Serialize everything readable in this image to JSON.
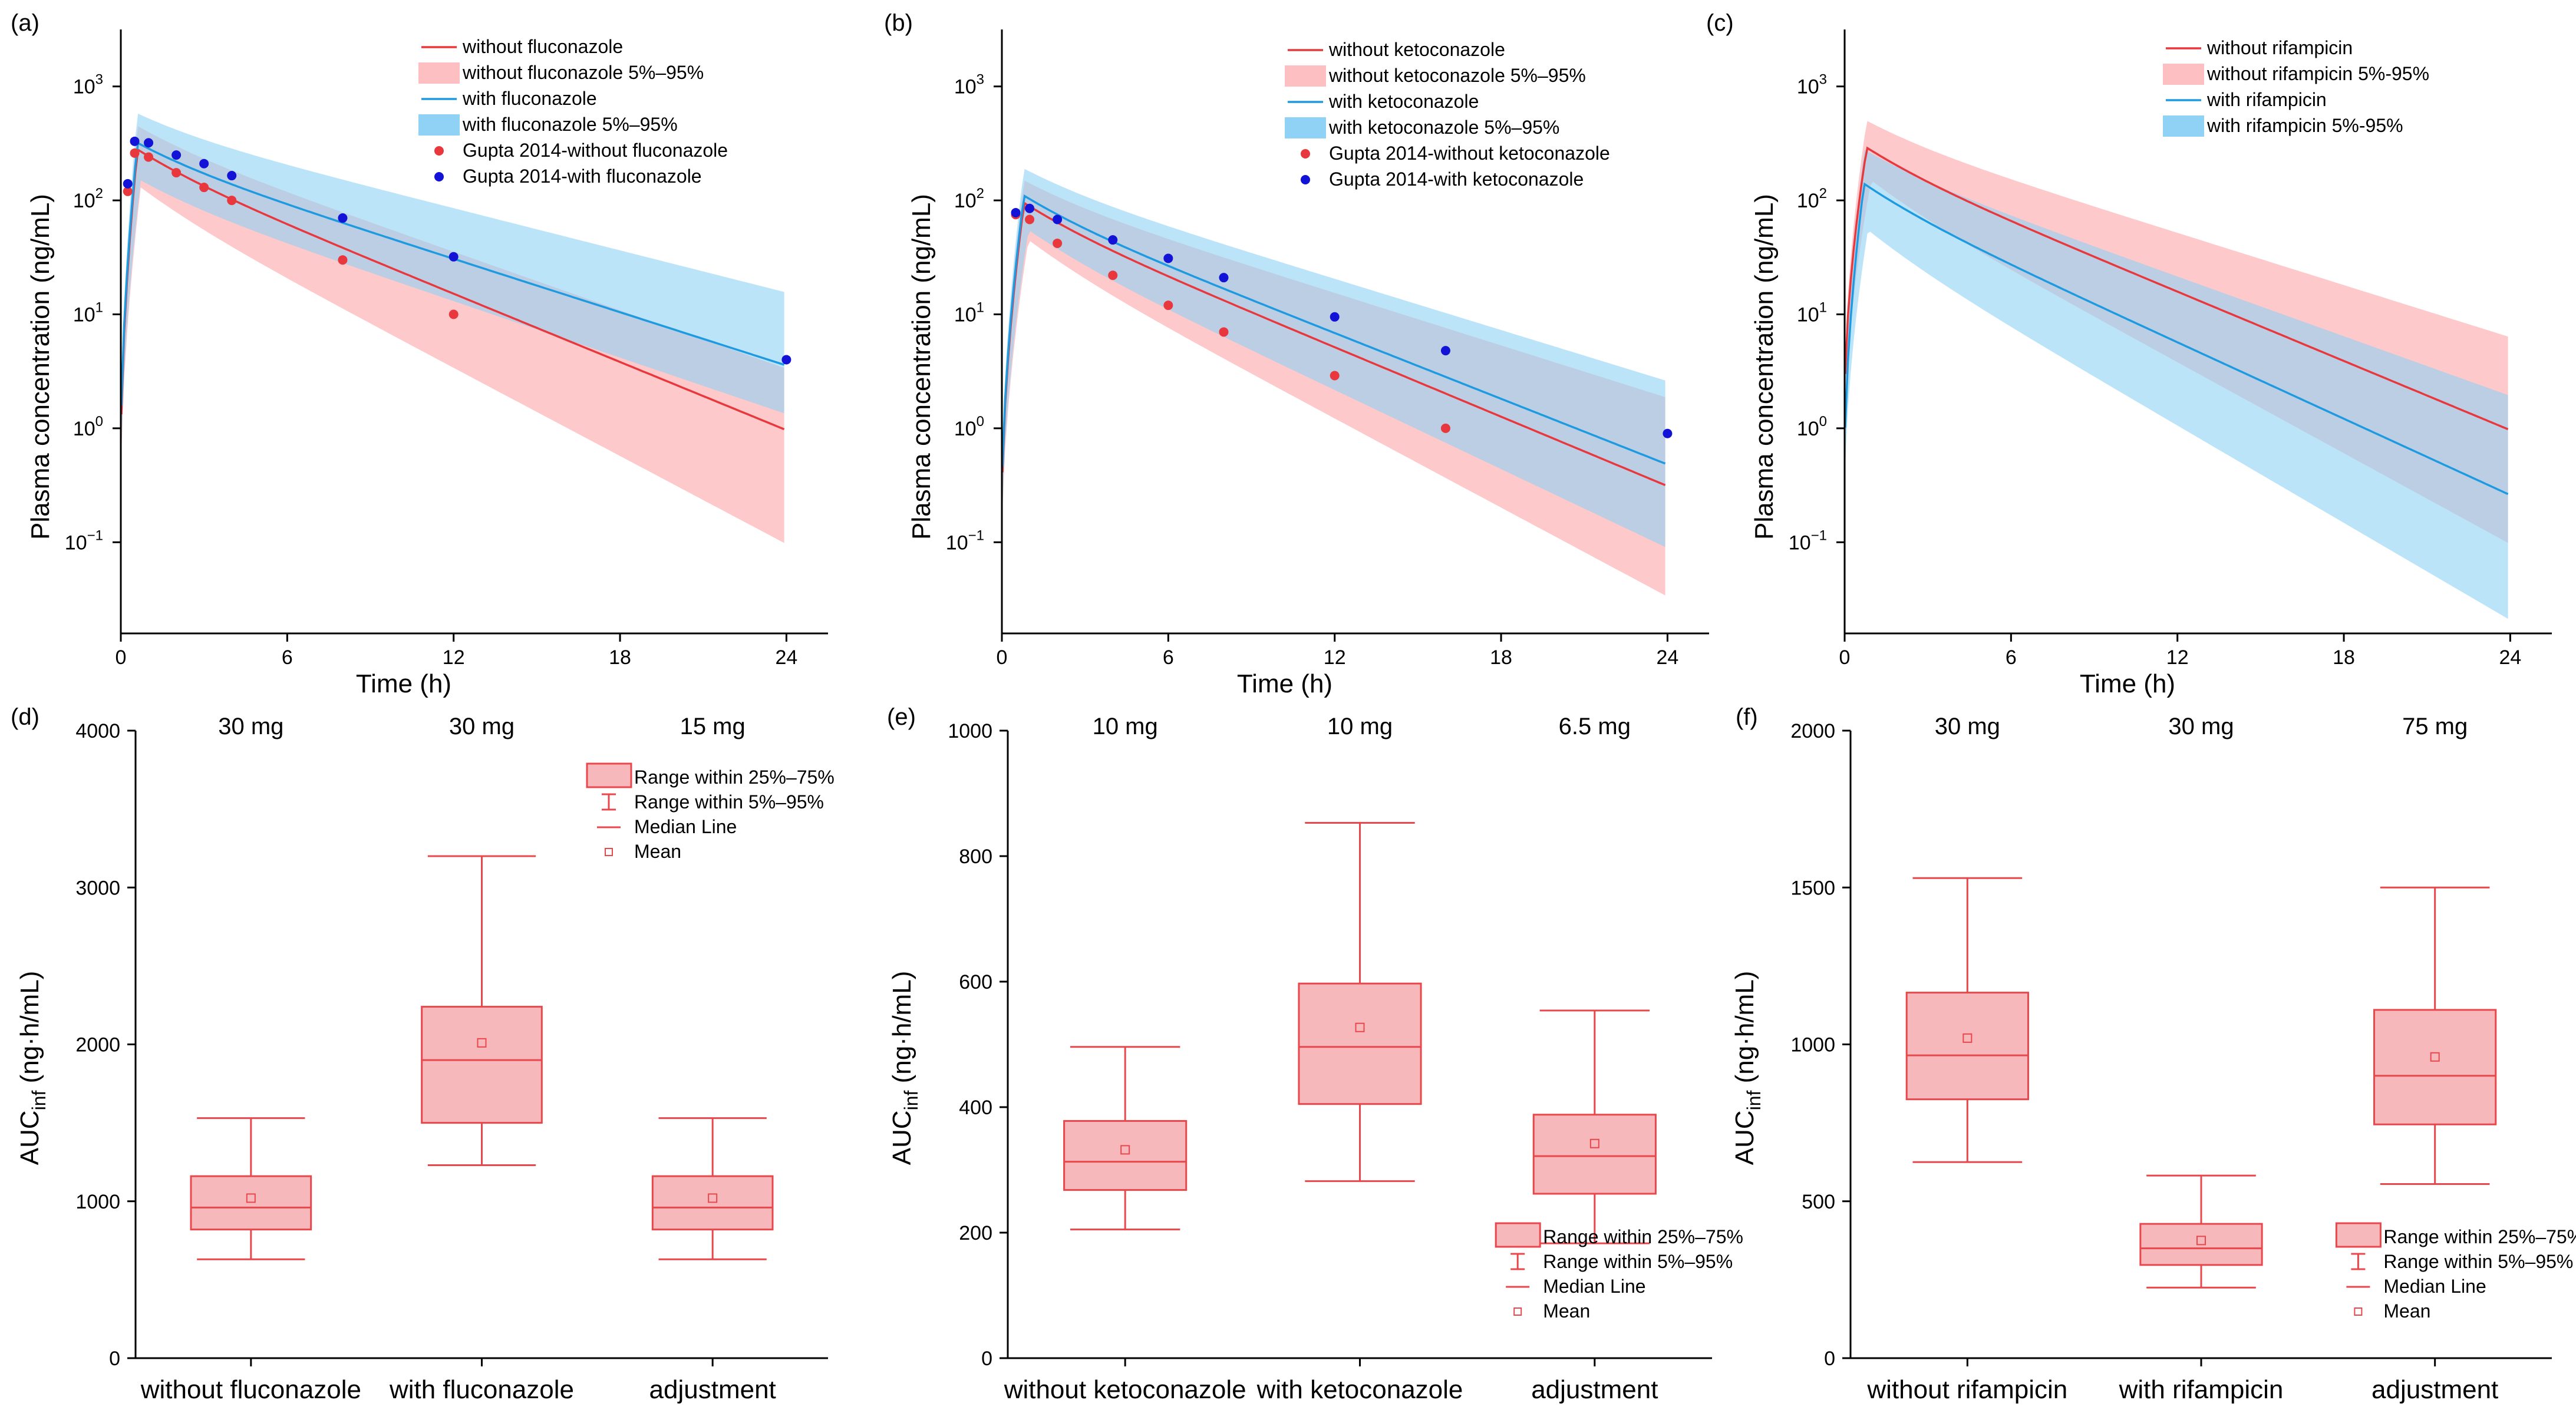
{
  "colors": {
    "without": "#e8383d",
    "without_band": "#fdbfc2",
    "with": "#1e9ae0",
    "with_band": "#8fd2f5",
    "obs_without": "#e8383d",
    "obs_with": "#1313d8",
    "box_fill": "#f7b8bb",
    "box_line": "#e8474c"
  },
  "chart_data": [
    {
      "type": "line",
      "panel": "(a)",
      "xlabel": "Time (h)",
      "ylabel": "Plasma concentration (ng/mL)",
      "xlim": [
        0,
        25.5
      ],
      "ylim_log10": [
        -1.8,
        3.5
      ],
      "xticks": [
        "0",
        "6",
        "12",
        "18",
        "24"
      ],
      "yticks": [
        {
          "base": "10",
          "exp": "−1",
          "v": -1
        },
        {
          "base": "10",
          "exp": "0",
          "v": 0
        },
        {
          "base": "10",
          "exp": "1",
          "v": 1
        },
        {
          "base": "10",
          "exp": "2",
          "v": 2
        },
        {
          "base": "10",
          "exp": "3",
          "v": 3
        }
      ],
      "legend": [
        "without fluconazole",
        "without fluconazole 5%–95%",
        "with fluconazole",
        "with fluconazole 5%–95%",
        "Gupta 2014-without fluconazole",
        "Gupta 2014-with fluconazole"
      ],
      "series": [
        {
          "name": "without fluconazole",
          "cmax": 280,
          "tmax": 0.6,
          "c24": 1.3,
          "lo_cmax": 130,
          "lo_c24": 0.13,
          "hi_cmax": 450,
          "hi_c24": 4.5,
          "c0": 0.5
        },
        {
          "name": "with fluconazole",
          "cmax": 320,
          "tmax": 0.6,
          "c24": 4.8,
          "lo_cmax": 150,
          "lo_c24": 1.8,
          "hi_cmax": 580,
          "hi_c24": 21,
          "c0": 0.6
        }
      ],
      "obs_without": [
        [
          0.25,
          120
        ],
        [
          0.5,
          260
        ],
        [
          1,
          240
        ],
        [
          2,
          175
        ],
        [
          3,
          130
        ],
        [
          4,
          100
        ],
        [
          8,
          30
        ],
        [
          12,
          10
        ]
      ],
      "obs_with": [
        [
          0.25,
          140
        ],
        [
          0.5,
          330
        ],
        [
          1,
          320
        ],
        [
          2,
          250
        ],
        [
          3,
          210
        ],
        [
          4,
          165
        ],
        [
          8,
          70
        ],
        [
          12,
          32
        ],
        [
          24,
          4
        ]
      ]
    },
    {
      "type": "line",
      "panel": "(b)",
      "xlabel": "Time (h)",
      "ylabel": "Plasma concentration (ng/mL)",
      "xlim": [
        0,
        25.5
      ],
      "ylim_log10": [
        -1.8,
        3.5
      ],
      "xticks": [
        "0",
        "6",
        "12",
        "18",
        "24"
      ],
      "yticks": [
        {
          "base": "10",
          "exp": "−1",
          "v": -1
        },
        {
          "base": "10",
          "exp": "0",
          "v": 0
        },
        {
          "base": "10",
          "exp": "1",
          "v": 1
        },
        {
          "base": "10",
          "exp": "2",
          "v": 2
        },
        {
          "base": "10",
          "exp": "3",
          "v": 3
        }
      ],
      "legend": [
        "without ketoconazole",
        "without ketoconazole 5%–95%",
        "with ketoconazole",
        "with ketoconazole 5%–95%",
        "Gupta 2014-without ketoconazole",
        "Gupta 2014-with ketoconazole"
      ],
      "series": [
        {
          "name": "without ketoconazole",
          "cmax": 95,
          "tmax": 0.8,
          "c24": 0.42,
          "lo_cmax": 45,
          "lo_c24": 0.045,
          "hi_cmax": 150,
          "hi_c24": 2.5,
          "c0": 0.18
        },
        {
          "name": "with ketoconazole",
          "cmax": 110,
          "tmax": 0.8,
          "c24": 0.65,
          "lo_cmax": 55,
          "lo_c24": 0.12,
          "hi_cmax": 190,
          "hi_c24": 3.5,
          "c0": 0.2
        }
      ],
      "obs_without": [
        [
          0.5,
          75
        ],
        [
          1,
          68
        ],
        [
          2,
          42
        ],
        [
          4,
          22
        ],
        [
          6,
          12
        ],
        [
          8,
          7
        ],
        [
          12,
          2.9
        ],
        [
          16,
          1
        ]
      ],
      "obs_with": [
        [
          0.5,
          78
        ],
        [
          1,
          85
        ],
        [
          2,
          68
        ],
        [
          4,
          45
        ],
        [
          6,
          31
        ],
        [
          8,
          21
        ],
        [
          12,
          9.5
        ],
        [
          16,
          4.8
        ],
        [
          24,
          0.9
        ]
      ]
    },
    {
      "type": "line",
      "panel": "(c)",
      "xlabel": "Time (h)",
      "ylabel": "Plasma concentration (ng/mL)",
      "xlim": [
        0,
        25.5
      ],
      "ylim_log10": [
        -1.8,
        3.5
      ],
      "xticks": [
        "0",
        "6",
        "12",
        "18",
        "24"
      ],
      "yticks": [
        {
          "base": "10",
          "exp": "−1",
          "v": -1
        },
        {
          "base": "10",
          "exp": "0",
          "v": 0
        },
        {
          "base": "10",
          "exp": "1",
          "v": 1
        },
        {
          "base": "10",
          "exp": "2",
          "v": 2
        },
        {
          "base": "10",
          "exp": "3",
          "v": 3
        }
      ],
      "legend": [
        "without rifampicin",
        "without rifampicin 5%-95%",
        "with rifampicin",
        "with rifampicin 5%-95%"
      ],
      "series": [
        {
          "name": "without rifampicin",
          "cmax": 290,
          "tmax": 0.8,
          "c24": 1.3,
          "lo_cmax": 150,
          "lo_c24": 0.13,
          "hi_cmax": 500,
          "hi_c24": 8.5,
          "c0": 1.5
        },
        {
          "name": "with rifampicin",
          "cmax": 140,
          "tmax": 0.7,
          "c24": 0.35,
          "lo_cmax": 55,
          "lo_c24": 0.028,
          "hi_cmax": 280,
          "hi_c24": 2.6,
          "c0": 0.45
        }
      ],
      "obs_without": [],
      "obs_with": []
    },
    {
      "type": "box",
      "panel": "(d)",
      "ylabel": "AUC",
      "ylabel_sub": "inf",
      "ylabel_unit": " (ng·h/mL)",
      "ylim": [
        0,
        4000
      ],
      "yticks": [
        0,
        1000,
        2000,
        3000,
        4000
      ],
      "categories": [
        "without fluconazole",
        "with fluconazole",
        "adjustment"
      ],
      "doses": [
        "30 mg",
        "30 mg",
        "15 mg"
      ],
      "boxes": [
        {
          "p5": 630,
          "q1": 820,
          "median": 960,
          "q3": 1160,
          "p95": 1530,
          "mean": 1020
        },
        {
          "p5": 1230,
          "q1": 1500,
          "median": 1900,
          "q3": 2240,
          "p95": 3200,
          "mean": 2010
        },
        {
          "p5": 630,
          "q1": 820,
          "median": 960,
          "q3": 1160,
          "p95": 1530,
          "mean": 1020
        }
      ],
      "legend_pos": "top-right",
      "legend": [
        "Range within 25%–75%",
        "Range within 5%–95%",
        "Median Line",
        "Mean"
      ]
    },
    {
      "type": "box",
      "panel": "(e)",
      "ylabel": "AUC",
      "ylabel_sub": "inf",
      "ylabel_unit": " (ng·h/mL)",
      "ylim": [
        0,
        1000
      ],
      "yticks": [
        0,
        200,
        400,
        600,
        800,
        1000
      ],
      "categories": [
        "without ketoconazole",
        "with ketoconazole",
        "adjustment"
      ],
      "doses": [
        "10 mg",
        "10 mg",
        "6.5 mg"
      ],
      "boxes": [
        {
          "p5": 205,
          "q1": 268,
          "median": 313,
          "q3": 378,
          "p95": 496,
          "mean": 332
        },
        {
          "p5": 282,
          "q1": 405,
          "median": 496,
          "q3": 597,
          "p95": 853,
          "mean": 527
        },
        {
          "p5": 183,
          "q1": 262,
          "median": 322,
          "q3": 388,
          "p95": 554,
          "mean": 342
        }
      ],
      "legend_pos": "bottom-right",
      "legend": [
        "Range within 25%–75%",
        "Range within 5%–95%",
        "Median Line",
        "Mean"
      ]
    },
    {
      "type": "box",
      "panel": "(f)",
      "ylabel": "AUC",
      "ylabel_sub": "inf",
      "ylabel_unit": " (ng·h/mL)",
      "ylim": [
        0,
        2000
      ],
      "yticks": [
        0,
        500,
        1000,
        1500,
        2000
      ],
      "categories": [
        "without rifampicin",
        "with rifampicin",
        "adjustment"
      ],
      "doses": [
        "30 mg",
        "30 mg",
        "75 mg"
      ],
      "boxes": [
        {
          "p5": 625,
          "q1": 825,
          "median": 965,
          "q3": 1165,
          "p95": 1530,
          "mean": 1020
        },
        {
          "p5": 225,
          "q1": 297,
          "median": 350,
          "q3": 428,
          "p95": 582,
          "mean": 375
        },
        {
          "p5": 555,
          "q1": 745,
          "median": 900,
          "q3": 1110,
          "p95": 1500,
          "mean": 960
        }
      ],
      "legend_pos": "bottom-right",
      "legend": [
        "Range within 25%–75%",
        "Range within 5%–95%",
        "Median Line",
        "Mean"
      ]
    }
  ]
}
